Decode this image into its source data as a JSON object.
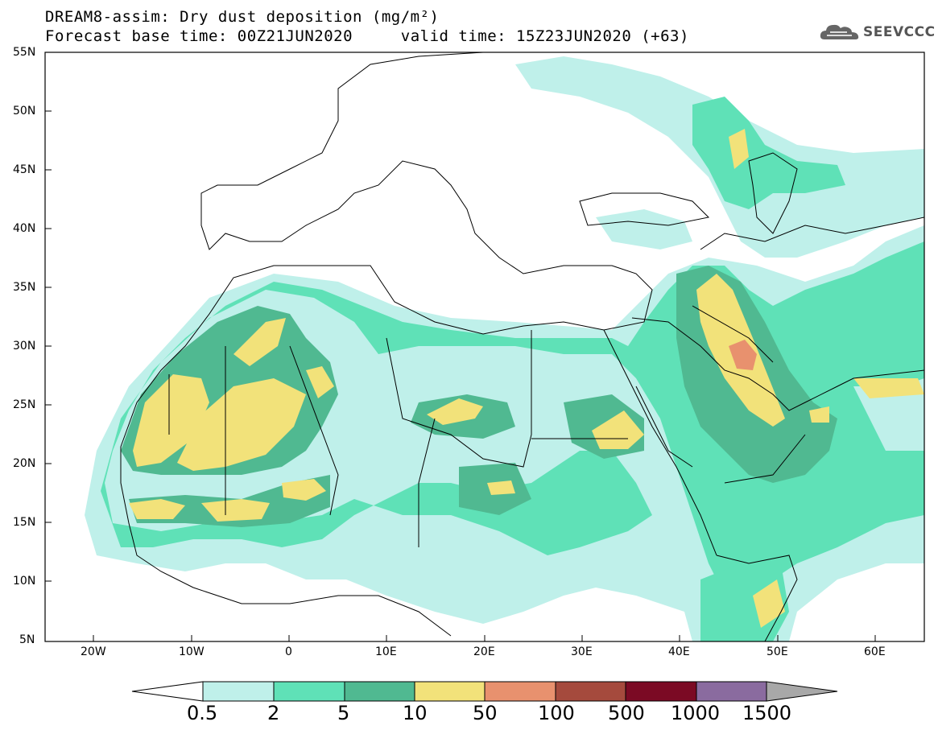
{
  "header": {
    "title": "DREAM8-assim: Dry dust deposition (mg/m²)",
    "subtitle_base": "Forecast base time: 00Z21JUN2020",
    "subtitle_valid": "valid time: 15Z23JUN2020 (+63)"
  },
  "logo": {
    "text": "SEEVCCC",
    "icon": "cloud-icon"
  },
  "axes": {
    "lat_labels": [
      "55N",
      "50N",
      "45N",
      "40N",
      "35N",
      "30N",
      "25N",
      "20N",
      "15N",
      "10N",
      "5N"
    ],
    "lon_labels": [
      "20W",
      "10W",
      "0",
      "10E",
      "20E",
      "30E",
      "40E",
      "50E",
      "60E"
    ]
  },
  "colorbar": {
    "labels": [
      "0.5",
      "2",
      "5",
      "10",
      "50",
      "100",
      "500",
      "1000",
      "1500"
    ],
    "colors": [
      "#bff0ea",
      "#5fe1b7",
      "#50b991",
      "#f2e27a",
      "#e8916e",
      "#a54a3d",
      "#7b0a24",
      "#8a6b9f",
      "#a8a8a8"
    ],
    "under_color": "#ffffff",
    "over_color": "#a8a8a8"
  },
  "legend_colors": {
    "level_0_5": "#bff0ea",
    "level_2": "#5fe1b7",
    "level_5": "#50b991",
    "level_10": "#f2e27a",
    "level_50": "#e8916e"
  }
}
